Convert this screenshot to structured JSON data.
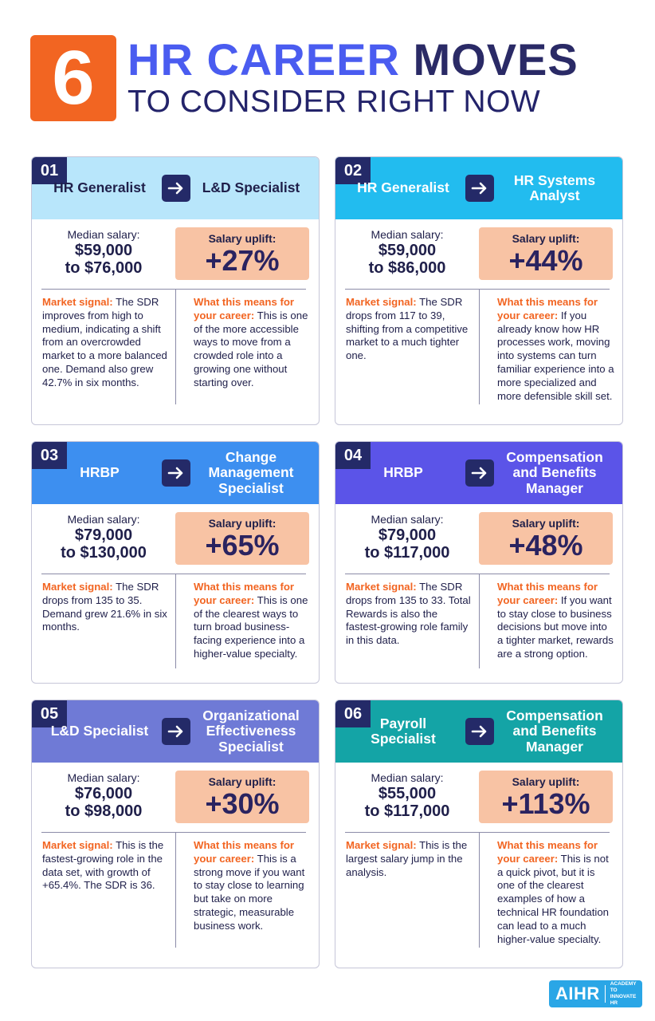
{
  "header": {
    "number": "6",
    "title_accent": "HR CAREER",
    "title_dark": "MOVES",
    "subtitle": "TO CONSIDER RIGHT NOW"
  },
  "cards": [
    {
      "number": "01",
      "from": "HR Generalist",
      "to": "L&D Specialist",
      "head_color": "#b8e6fb",
      "median_label": "Median salary:",
      "median_line1": "$59,000",
      "median_line2": "to $76,000",
      "uplift_label": "Salary uplift:",
      "uplift_value": "+27%",
      "signal_label": "Market signal:",
      "signal_text": " The SDR improves from high to medium, indicating a shift from an overcrowded market to a more balanced one. Demand also grew 42.7% in six months.",
      "means_label": "What this means for your career:",
      "means_text": " This is one of the more accessible ways to move from a crowded role into a growing one without starting over."
    },
    {
      "number": "02",
      "from": "HR Generalist",
      "to": "HR Systems Analyst",
      "head_color": "#22bcef",
      "median_label": "Median salary:",
      "median_line1": "$59,000",
      "median_line2": "to $86,000",
      "uplift_label": "Salary uplift:",
      "uplift_value": "+44%",
      "signal_label": "Market signal:",
      "signal_text": " The SDR drops from 117 to 39, shifting from a competitive market to a much tighter one.",
      "means_label": "What this means for your career:",
      "means_text": " If you already know how HR processes work, moving into systems can turn familiar experience into a more specialized and more defensible skill set."
    },
    {
      "number": "03",
      "from": "HRBP",
      "to": "Change Management Specialist",
      "head_color": "#3d8ff0",
      "median_label": "Median salary:",
      "median_line1": "$79,000",
      "median_line2": "to $130,000",
      "uplift_label": "Salary uplift:",
      "uplift_value": "+65%",
      "signal_label": "Market signal:",
      "signal_text": " The SDR drops from 135 to 35. Demand grew 21.6% in six months.",
      "means_label": "What this means for your career:",
      "means_text": " This is one of the clearest ways to turn broad business-facing experience into a higher-value specialty."
    },
    {
      "number": "04",
      "from": "HRBP",
      "to": "Compensation and Benefits Manager",
      "head_color": "#5b54e8",
      "median_label": "Median salary:",
      "median_line1": "$79,000",
      "median_line2": "to $117,000",
      "uplift_label": "Salary uplift:",
      "uplift_value": "+48%",
      "signal_label": "Market signal:",
      "signal_text": " The SDR drops from 135 to 33. Total Rewards is also the fastest-growing role family in this data.",
      "means_label": "What this means for your career:",
      "means_text": " If you want to stay close to business decisions but move into a tighter market, rewards are a strong option."
    },
    {
      "number": "05",
      "from": "L&D Specialist",
      "to": "Organizational Effectiveness Specialist",
      "head_color": "#6f7ad6",
      "median_label": "Median salary:",
      "median_line1": "$76,000",
      "median_line2": "to $98,000",
      "uplift_label": "Salary uplift:",
      "uplift_value": "+30%",
      "signal_label": "Market signal:",
      "signal_text": " This is the fastest-growing role in the data set, with growth of +65.4%. The SDR is 36.",
      "means_label": "What this means for your career:",
      "means_text": " This is a strong move if you want to stay close to learning but take on more strategic, measurable business work."
    },
    {
      "number": "06",
      "from": "Payroll Specialist",
      "to": "Compensation and Benefits Manager",
      "head_color": "#14a4a6",
      "median_label": "Median salary:",
      "median_line1": "$55,000",
      "median_line2": "to $117,000",
      "uplift_label": "Salary uplift:",
      "uplift_value": "+113%",
      "signal_label": "Market signal:",
      "signal_text": " This is the largest salary jump in the analysis.",
      "means_label": "What this means for your career:",
      "means_text": " This is not a quick pivot, but it is one of the clearest examples of how a technical HR foundation can lead to a much higher-value specialty."
    }
  ],
  "logo": {
    "mark": "AIHR",
    "sub": "ACADEMY TO INNOVATE HR",
    "color": "#2aa6e6"
  },
  "colors": {
    "orange": "#f26522",
    "navy": "#242a68",
    "uplift_bg": "#f8c3a4",
    "title_blue": "#4a5cf0"
  }
}
